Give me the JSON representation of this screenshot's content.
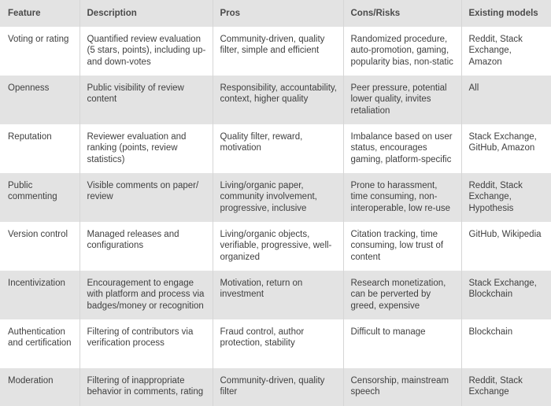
{
  "table": {
    "headers": [
      "Feature",
      "Description",
      "Pros",
      "Cons/Risks",
      "Existing models"
    ],
    "rows": [
      {
        "feature": "Voting or rating",
        "description": "Quantified review evaluation (5 stars, points), including up- and down-votes",
        "pros": "Community-driven, quality filter, simple and efficient",
        "cons": "Randomized procedure, auto-promotion, gaming, popularity bias, non-static",
        "models": "Reddit, Stack Exchange, Amazon"
      },
      {
        "feature": "Openness",
        "description": "Public visibility of review content",
        "pros": "Responsibility, accountability, context, higher quality",
        "cons": "Peer pressure, potential lower quality, invites retaliation",
        "models": "All"
      },
      {
        "feature": "Reputation",
        "description": "Reviewer evaluation and ranking (points, review statistics)",
        "pros": "Quality filter, reward, motivation",
        "cons": "Imbalance based on user status, encourages gaming, platform-specific",
        "models": "Stack Exchange, GitHub, Amazon"
      },
      {
        "feature": "Public commenting",
        "description": "Visible comments on paper/ review",
        "pros": "Living/organic paper, community involvement, progressive, inclusive",
        "cons": "Prone to harassment, time consuming, non-interoperable, low re-use",
        "models": "Reddit, Stack Exchange, Hypothesis"
      },
      {
        "feature": "Version control",
        "description": "Managed releases and configurations",
        "pros": "Living/organic objects, verifiable, progressive, well-organized",
        "cons": "Citation tracking, time consuming, low trust of content",
        "models": "GitHub, Wikipedia"
      },
      {
        "feature": "Incentivization",
        "description": "Encouragement to engage with platform and process via badges/money or recognition",
        "pros": "Motivation, return on investment",
        "cons": "Research monetization, can be perverted by greed, expensive",
        "models": "Stack Exchange, Blockchain"
      },
      {
        "feature": "Authentication and certification",
        "description": "Filtering of contributors via verification process",
        "pros": "Fraud control, author protection, stability",
        "cons": "Difficult to manage",
        "models": "Blockchain"
      },
      {
        "feature": "Moderation",
        "description": "Filtering of inappropriate behavior in comments, rating",
        "pros": "Community-driven, quality filter",
        "cons": "Censorship, mainstream speech",
        "models": "Reddit, Stack Exchange"
      }
    ]
  },
  "colors": {
    "header_bg": "#e3e3e3",
    "row_shade": "#e3e3e3",
    "row_light": "#ffffff",
    "text": "#3f3f3f",
    "divider": "#d6d6d6"
  }
}
